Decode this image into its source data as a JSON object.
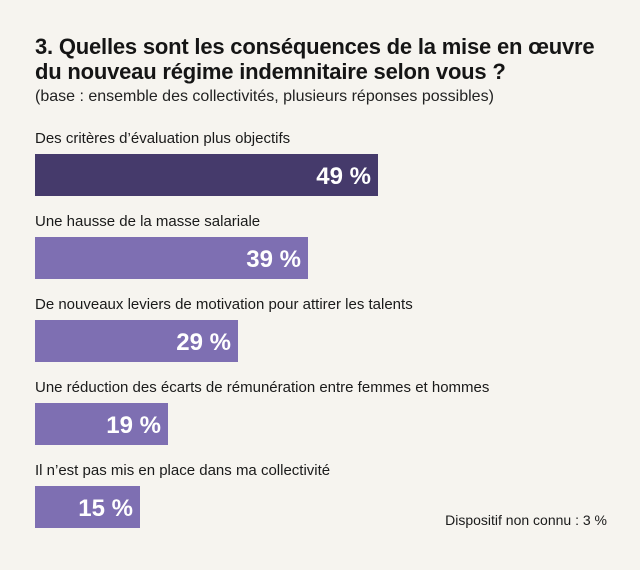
{
  "header": {
    "title_line1": "3. Quelles sont les conséquences de la mise en œuvre",
    "title_line2": "du nouveau régime indemnitaire selon vous ?",
    "subtitle": "(base : ensemble des collectivités, plusieurs réponses possibles)"
  },
  "footnote": "Dispositif non connu : 3 %",
  "colors": {
    "highlight": "#453a6b",
    "bar": "#7e6fb2",
    "value_text": "#ffffff"
  },
  "chart_data": {
    "type": "bar",
    "orientation": "horizontal",
    "title": "3. Quelles sont les conséquences de la mise en œuvre du nouveau régime indemnitaire selon vous ?",
    "subtitle": "(base : ensemble des collectivités, plusieurs réponses possibles)",
    "categories": [
      "Des critères d’évaluation plus objectifs",
      "Une hausse de la masse salariale",
      "De nouveaux leviers de motivation pour attirer les talents",
      "Une réduction des écarts de rémunération entre femmes et hommes",
      "Il n’est pas mis en place dans ma collectivité"
    ],
    "values": [
      49,
      39,
      29,
      19,
      15
    ],
    "value_labels": [
      "49 %",
      "39 %",
      "29 %",
      "19 %",
      "15 %"
    ],
    "unit": "%",
    "xlim": [
      0,
      100
    ],
    "grid": false,
    "legend": "none",
    "highlight_index": 0
  }
}
